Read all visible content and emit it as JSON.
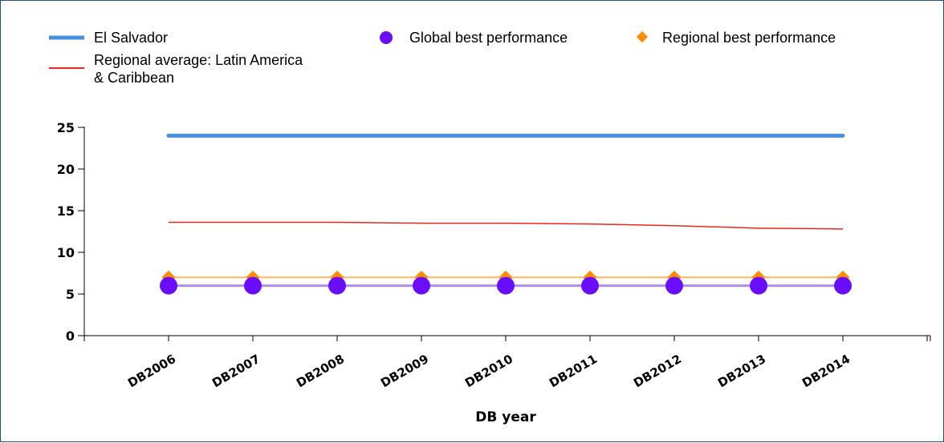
{
  "chart_data": {
    "type": "line",
    "title": "",
    "xlabel": "DB year",
    "ylabel": "",
    "categories": [
      "DB2006",
      "DB2007",
      "DB2008",
      "DB2009",
      "DB2010",
      "DB2011",
      "DB2012",
      "DB2013",
      "DB2014"
    ],
    "ylim": [
      0,
      25
    ],
    "yticks": [
      0,
      5,
      10,
      15,
      20,
      25
    ],
    "grid": false,
    "legend_position": "top",
    "series": [
      {
        "name": "El Salvador",
        "color": "#4a90e2",
        "style": "line-thick",
        "values": [
          24,
          24,
          24,
          24,
          24,
          24,
          24,
          24,
          24
        ]
      },
      {
        "name": "Regional average: Latin America & Caribbean",
        "color": "#e8281e",
        "style": "line-thin",
        "values": [
          13.6,
          13.6,
          13.6,
          13.5,
          13.5,
          13.4,
          13.2,
          12.9,
          12.8
        ]
      },
      {
        "name": "Global best performance",
        "color": "#6a0dff",
        "line_color": "#b18cf0",
        "style": "circle-markers",
        "values": [
          6,
          6,
          6,
          6,
          6,
          6,
          6,
          6,
          6
        ]
      },
      {
        "name": "Regional best performance",
        "color": "#ff8c00",
        "line_color": "#ffb65c",
        "style": "diamond-markers",
        "values": [
          7,
          7,
          7,
          7,
          7,
          7,
          7,
          7,
          7
        ]
      }
    ],
    "legend": {
      "el_salvador": "El Salvador",
      "regional_avg_line1": "Regional average: Latin America",
      "regional_avg_line2": "& Caribbean",
      "global_best": "Global best performance",
      "regional_best": "Regional best performance"
    }
  }
}
